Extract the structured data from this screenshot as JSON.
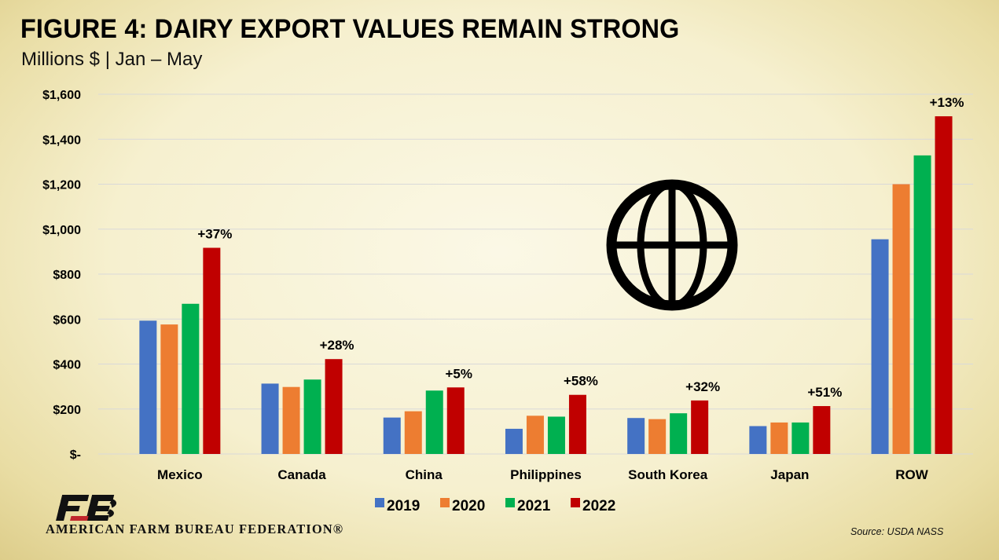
{
  "header": {
    "title": "FIGURE 4: DAIRY EXPORT VALUES REMAIN STRONG",
    "subtitle": "Millions $ | Jan – May"
  },
  "footer": {
    "org_name": "AMERICAN FARM BUREAU FEDERATION®",
    "source": "Source: USDA NASS"
  },
  "icons": {
    "globe": "globe-icon",
    "logo": "fb-logo-icon"
  },
  "chart_data": {
    "type": "bar",
    "categories": [
      "Mexico",
      "Canada",
      "China",
      "Philippines",
      "South Korea",
      "Japan",
      "ROW"
    ],
    "series": [
      {
        "name": "2019",
        "color": "#4472C4",
        "values": [
          593,
          313,
          162,
          112,
          160,
          124,
          955
        ]
      },
      {
        "name": "2020",
        "color": "#ED7D31",
        "values": [
          576,
          298,
          190,
          170,
          155,
          140,
          1200
        ]
      },
      {
        "name": "2021",
        "color": "#00B050",
        "values": [
          668,
          331,
          282,
          166,
          181,
          140,
          1328
        ]
      },
      {
        "name": "2022",
        "color": "#C00000",
        "values": [
          917,
          422,
          296,
          263,
          238,
          213,
          1502
        ]
      }
    ],
    "annotations": [
      "+37%",
      "+28%",
      "+5%",
      "+58%",
      "+32%",
      "+51%",
      "+13%"
    ],
    "ylim": [
      0,
      1600
    ],
    "ytick_values": [
      0,
      200,
      400,
      600,
      800,
      1000,
      1200,
      1400,
      1600
    ],
    "ytick_labels": [
      "$-",
      "$200",
      "$400",
      "$600",
      "$800",
      "$1,000",
      "$1,200",
      "$1,400",
      "$1,600"
    ],
    "grid": true,
    "legend_position": "bottom",
    "xlabel": "",
    "ylabel": ""
  }
}
